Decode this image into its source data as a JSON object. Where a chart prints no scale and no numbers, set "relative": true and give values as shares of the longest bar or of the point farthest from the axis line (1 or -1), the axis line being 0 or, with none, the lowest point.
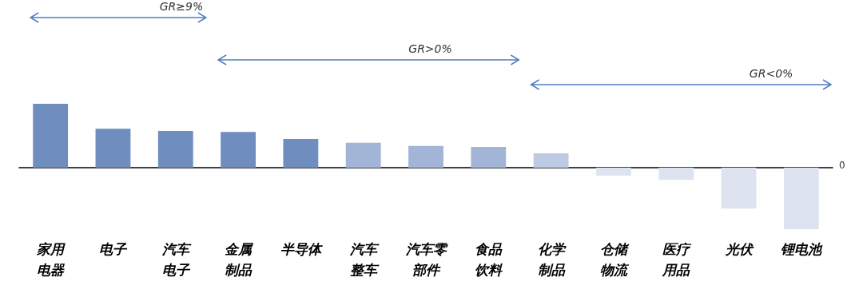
{
  "chart_data": {
    "type": "bar",
    "relative": true,
    "categories": [
      "家用电器",
      "电子",
      "汽车电子",
      "金属制品",
      "半导体",
      "汽车整车",
      "汽车零部件",
      "食品饮料",
      "化学制品",
      "仓储物流",
      "医疗用品",
      "光伏",
      "锂电池"
    ],
    "values": [
      1,
      0.61,
      0.575,
      0.56,
      0.45,
      0.39,
      0.34,
      0.325,
      0.225,
      -0.125,
      -0.19,
      -0.64,
      -0.96
    ],
    "colors": [
      "#6f8ebf",
      "#6f8ebf",
      "#6f8ebf",
      "#6f8ebf",
      "#6f8ebf",
      "#a3b5d6",
      "#a3b5d6",
      "#a3b5d6",
      "#bccbe3",
      "#dde4f0",
      "#dde4f0",
      "#dde4f0",
      "#dde4f0"
    ],
    "annotations": [
      "GR≥9%",
      "GR>0%",
      "GR<0%",
      "0"
    ]
  }
}
